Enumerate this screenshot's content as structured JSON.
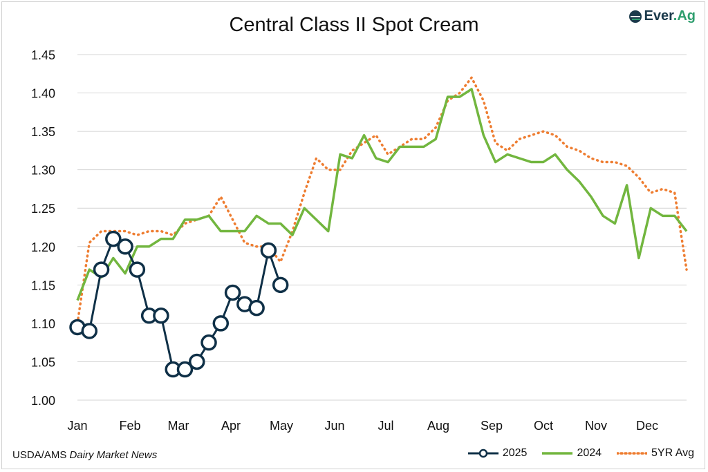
{
  "chart_data": {
    "type": "line",
    "title": "Central Class II Spot Cream",
    "xlabel": "",
    "ylabel": "",
    "ylim": [
      1.0,
      1.45
    ],
    "yticks": [
      "1.00",
      "1.05",
      "1.10",
      "1.15",
      "1.20",
      "1.25",
      "1.30",
      "1.35",
      "1.40",
      "1.45"
    ],
    "xticks": [
      "Jan",
      "Feb",
      "Mar",
      "Apr",
      "May",
      "Jun",
      "Jul",
      "Aug",
      "Sep",
      "Oct",
      "Nov",
      "Dec"
    ],
    "x_unit": "week (1-52)",
    "grid": true,
    "legend_position": "bottom-right",
    "series": [
      {
        "name": "2025",
        "color": "#0f3047",
        "style": "solid-marker",
        "values": [
          1.095,
          1.09,
          1.17,
          1.21,
          1.2,
          1.17,
          1.11,
          1.11,
          1.04,
          1.04,
          1.05,
          1.075,
          1.1,
          1.14,
          1.125,
          1.12,
          1.195,
          1.15
        ]
      },
      {
        "name": "2024",
        "color": "#72b63f",
        "style": "solid",
        "values": [
          1.13,
          1.17,
          1.16,
          1.185,
          1.165,
          1.2,
          1.2,
          1.21,
          1.21,
          1.235,
          1.235,
          1.24,
          1.22,
          1.22,
          1.22,
          1.24,
          1.23,
          1.23,
          1.215,
          1.25,
          1.235,
          1.22,
          1.32,
          1.315,
          1.345,
          1.315,
          1.31,
          1.33,
          1.33,
          1.33,
          1.34,
          1.395,
          1.395,
          1.405,
          1.345,
          1.31,
          1.32,
          1.315,
          1.31,
          1.31,
          1.32,
          1.3,
          1.285,
          1.265,
          1.24,
          1.23,
          1.28,
          1.185,
          1.25,
          1.24,
          1.24,
          1.22
        ]
      },
      {
        "name": "5YR Avg",
        "color": "#ee7d31",
        "style": "dotted",
        "values": [
          1.1,
          1.205,
          1.22,
          1.22,
          1.22,
          1.215,
          1.22,
          1.22,
          1.215,
          1.23,
          1.235,
          1.24,
          1.265,
          1.235,
          1.205,
          1.2,
          1.2,
          1.18,
          1.22,
          1.27,
          1.315,
          1.3,
          1.3,
          1.325,
          1.335,
          1.345,
          1.32,
          1.33,
          1.34,
          1.34,
          1.355,
          1.39,
          1.4,
          1.42,
          1.39,
          1.335,
          1.325,
          1.34,
          1.345,
          1.35,
          1.345,
          1.33,
          1.325,
          1.315,
          1.31,
          1.31,
          1.305,
          1.29,
          1.27,
          1.275,
          1.27,
          1.17
        ]
      }
    ]
  },
  "source": {
    "prefix": "USDA/AMS ",
    "italic": "Dairy Market News"
  },
  "logo": {
    "main": "Ever",
    "accent": ".Ag"
  }
}
